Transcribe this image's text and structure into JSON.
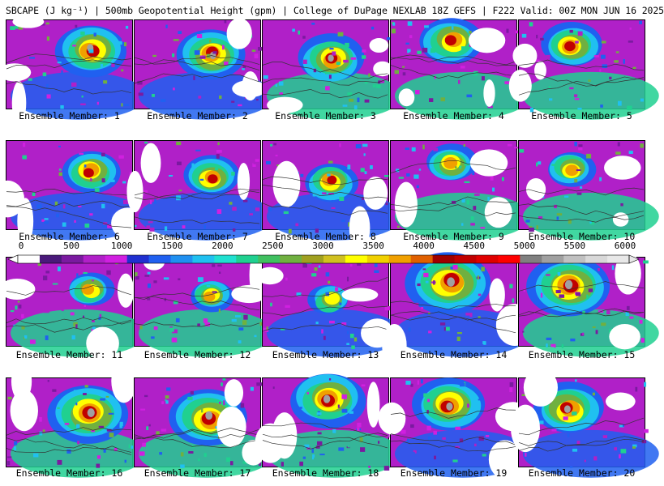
{
  "header": {
    "title": "SBCAPE (J kg⁻¹) | 500mb Geopotential Height (gpm) | College of DuPage NEXLAB 18Z GEFS | F222 Valid: 00Z MON JUN 16 2025"
  },
  "colorbar": {
    "ticks": [
      "0",
      "500",
      "1000",
      "1500",
      "2000",
      "2500",
      "3000",
      "3500",
      "4000",
      "4500",
      "5000",
      "5500",
      "6000"
    ],
    "colors": [
      "#ffffff",
      "#4a1a7a",
      "#7a1aa0",
      "#b020c8",
      "#d020e0",
      "#2030d0",
      "#2060f0",
      "#2090f0",
      "#20c0f0",
      "#20e0d0",
      "#20d090",
      "#40c060",
      "#70b040",
      "#a0a020",
      "#d0c020",
      "#ffff00",
      "#f0d000",
      "#f0a000",
      "#e06000",
      "#a00000",
      "#c00000",
      "#e00000",
      "#ff0000",
      "#808080",
      "#a0a0a0",
      "#c0c0c0",
      "#d8d8d8",
      "#e8e8e8"
    ]
  },
  "panels": [
    {
      "label": "Ensemble Member: 1"
    },
    {
      "label": "Ensemble Member: 2"
    },
    {
      "label": "Ensemble Member: 3"
    },
    {
      "label": "Ensemble Member: 4"
    },
    {
      "label": "Ensemble Member: 5"
    },
    {
      "label": "Ensemble Member: 6"
    },
    {
      "label": "Ensemble Member: 7"
    },
    {
      "label": "Ensemble Member: 8"
    },
    {
      "label": "Ensemble Member: 9"
    },
    {
      "label": "Ensemble Member: 10"
    },
    {
      "label": "Ensemble Member: 11"
    },
    {
      "label": "Ensemble Member: 12"
    },
    {
      "label": "Ensemble Member: 13"
    },
    {
      "label": "Ensemble Member: 14"
    },
    {
      "label": "Ensemble Member: 15"
    },
    {
      "label": "Ensemble Member: 16"
    },
    {
      "label": "Ensemble Member: 17"
    },
    {
      "label": "Ensemble Member: 18"
    },
    {
      "label": "Ensemble Member: 19"
    },
    {
      "label": "Ensemble Member: 20"
    }
  ]
}
